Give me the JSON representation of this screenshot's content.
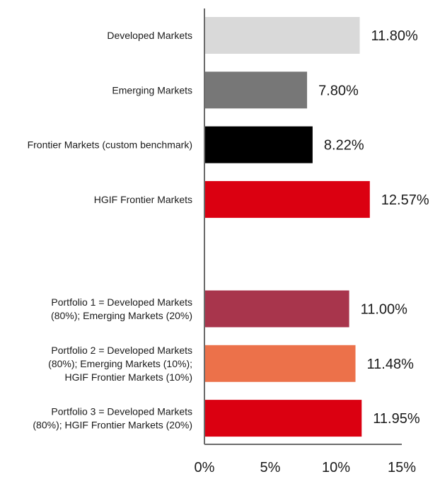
{
  "chart_data": {
    "type": "bar",
    "orientation": "horizontal",
    "title": "",
    "xlabel": "",
    "ylabel": "",
    "xlim": [
      0,
      15
    ],
    "grid": false,
    "legend": "none",
    "categories": [
      [
        "Developed Markets"
      ],
      [
        "Emerging Markets"
      ],
      [
        "Frontier Markets (custom benchmark)"
      ],
      [
        "HGIF Frontier Markets"
      ],
      [],
      [
        "Portfolio 1 = Developed Markets",
        "(80%); Emerging Markets (20%)"
      ],
      [
        "Portfolio 2 = Developed Markets",
        "(80%); Emerging Markets (10%);",
        "HGIF Frontier Markets (10%)"
      ],
      [
        "Portfolio 3 = Developed Markets",
        "(80%); HGIF Frontier Markets (20%)"
      ]
    ],
    "values": [
      11.8,
      7.8,
      8.22,
      12.57,
      null,
      11.0,
      11.48,
      11.95
    ],
    "value_labels": [
      "11.80%",
      "7.80%",
      "8.22%",
      "12.57%",
      "",
      "11.00%",
      "11.48%",
      "11.95%"
    ],
    "colors": [
      "#d9d9d9",
      "#777777",
      "#000000",
      "#db0011",
      "#ffffff",
      "#a8354c",
      "#ec714a",
      "#db0011"
    ],
    "ticks": [
      0,
      5,
      10,
      15
    ],
    "tick_labels": [
      "0%",
      "5%",
      "10%",
      "15%"
    ]
  }
}
